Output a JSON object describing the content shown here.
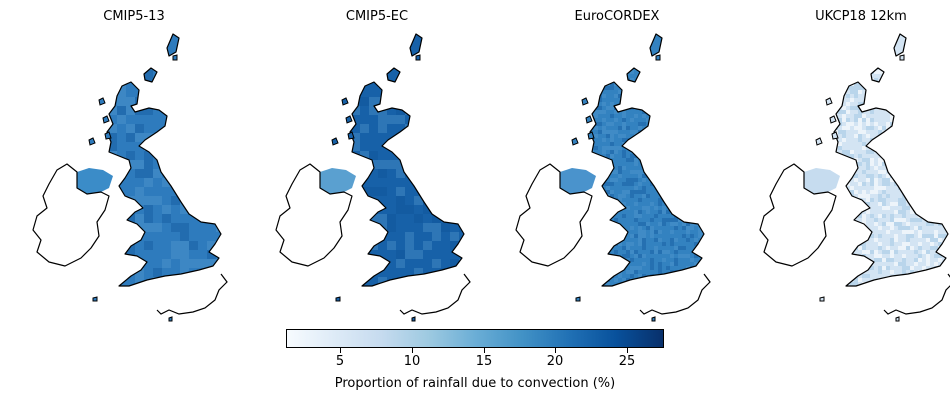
{
  "panels": [
    {
      "title": "CMIP5-13",
      "fill": "#2e7bbd",
      "ni_fill": "#3b8cc8",
      "variation": "blocky"
    },
    {
      "title": "CMIP5-EC",
      "fill": "#1761a8",
      "ni_fill": "#5aa0d0",
      "variation": "blocky"
    },
    {
      "title": "EuroCORDEX",
      "fill": "#3382c0",
      "ni_fill": "#4a93cc",
      "variation": "fine"
    },
    {
      "title": "UKCP18 12km",
      "fill": "#d3e4f3",
      "ni_fill": "#c6dcef",
      "variation": "fine"
    }
  ],
  "colorbar": {
    "label": "Proportion of rainfall due to convection (%)",
    "ticks": [
      "5",
      "10",
      "15",
      "20",
      "25"
    ],
    "tick_values": [
      5,
      10,
      15,
      20,
      25
    ],
    "range": [
      1.2,
      27.6
    ],
    "colormap": "Blues",
    "colors": [
      "#f7fbff",
      "#deebf7",
      "#c6dbef",
      "#9ecae1",
      "#6baed6",
      "#4292c6",
      "#2171b5",
      "#08519c",
      "#08306b"
    ]
  }
}
